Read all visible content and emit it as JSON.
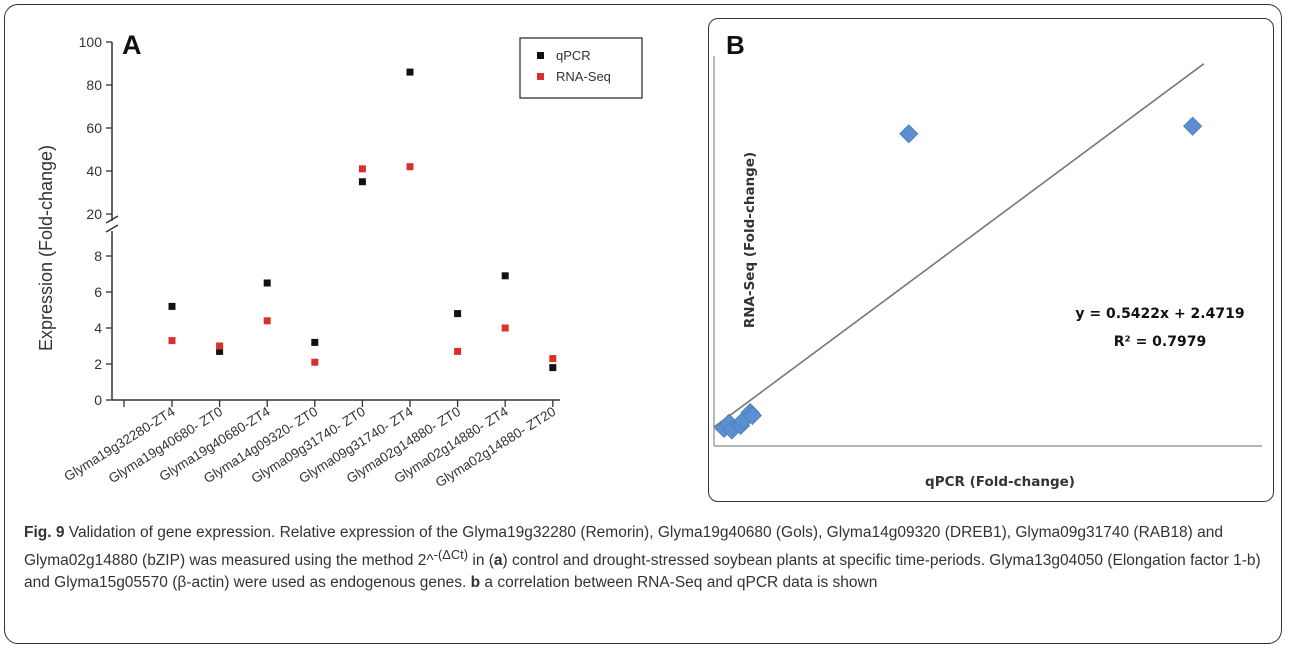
{
  "figure": {
    "caption": {
      "fig_label": "Fig. 9",
      "part1": " Validation of gene expression. Relative expression of the Glyma19g32280 (Remorin), Glyma19g40680 (Gols), Glyma14g09320 (DREB1), Glyma09g31740 (RAB18) and Glyma02g14880 (bZIP) was measured using the method 2^",
      "superscript": "-(ΔCt)",
      "part2": " in (",
      "ref_a": "a",
      "part3": ") control and drought-stressed soybean plants at specific time-periods. Glyma13g04050 (Elongation factor 1-b) and Glyma15g05570 (β-actin) were used as endogenous genes. ",
      "ref_b": "b",
      "part4": " a correlation between RNA-Seq and qPCR data is shown"
    }
  },
  "colors": {
    "qpcr": "#111111",
    "rnaseq": "#d9302c",
    "diamond": "#5b8fd0",
    "trendline": "#777777",
    "axis": "#333333"
  },
  "chart_data": [
    {
      "panel_label": "A",
      "type": "scatter",
      "ylabel": "Expression (Fold-change)",
      "categories": [
        "Glyma19g32280-ZT4",
        "Glyma19g40680- ZT0",
        "Glyma19g40680-ZT4",
        "Glyma14g09320- ZT0",
        "Glyma09g31740- ZT0",
        "Glyma09g31740- ZT4",
        "Glyma02g14880- ZT0",
        "Glyma02g14880- ZT4",
        "Glyma02g14880- ZT20"
      ],
      "axis_break": true,
      "y_lower_ticks": [
        0,
        2,
        4,
        6,
        8
      ],
      "y_upper_ticks": [
        20,
        40,
        60,
        80,
        100
      ],
      "ylim_lower": [
        0,
        9
      ],
      "ylim_upper": [
        20,
        100
      ],
      "legend_position": "top-right",
      "series": [
        {
          "name": "qPCR",
          "values": [
            5.2,
            2.7,
            6.5,
            3.2,
            35,
            86,
            4.8,
            6.9,
            1.8
          ]
        },
        {
          "name": "RNA-Seq",
          "values": [
            3.3,
            3.0,
            4.4,
            2.1,
            41,
            42,
            2.7,
            4.0,
            2.3
          ]
        }
      ]
    },
    {
      "panel_label": "B",
      "type": "scatter",
      "xlabel": "qPCR (Fold-change)",
      "ylabel": "RNA-Seq (Fold-change)",
      "xlim": [
        0,
        92
      ],
      "ylim": [
        0,
        52
      ],
      "ticks_shown": false,
      "points": [
        {
          "x": 1.8,
          "y": 2.3
        },
        {
          "x": 2.7,
          "y": 3.0
        },
        {
          "x": 3.2,
          "y": 2.1
        },
        {
          "x": 4.8,
          "y": 2.7
        },
        {
          "x": 5.2,
          "y": 3.3
        },
        {
          "x": 6.5,
          "y": 4.4
        },
        {
          "x": 6.9,
          "y": 4.0
        },
        {
          "x": 35,
          "y": 41
        },
        {
          "x": 86,
          "y": 42
        }
      ],
      "trendline": {
        "slope": 0.5422,
        "intercept": 2.4719,
        "x_range": [
          0,
          88
        ]
      },
      "equation": "y = 0.5422x + 2.4719",
      "r_squared": "R² = 0.7979"
    }
  ]
}
